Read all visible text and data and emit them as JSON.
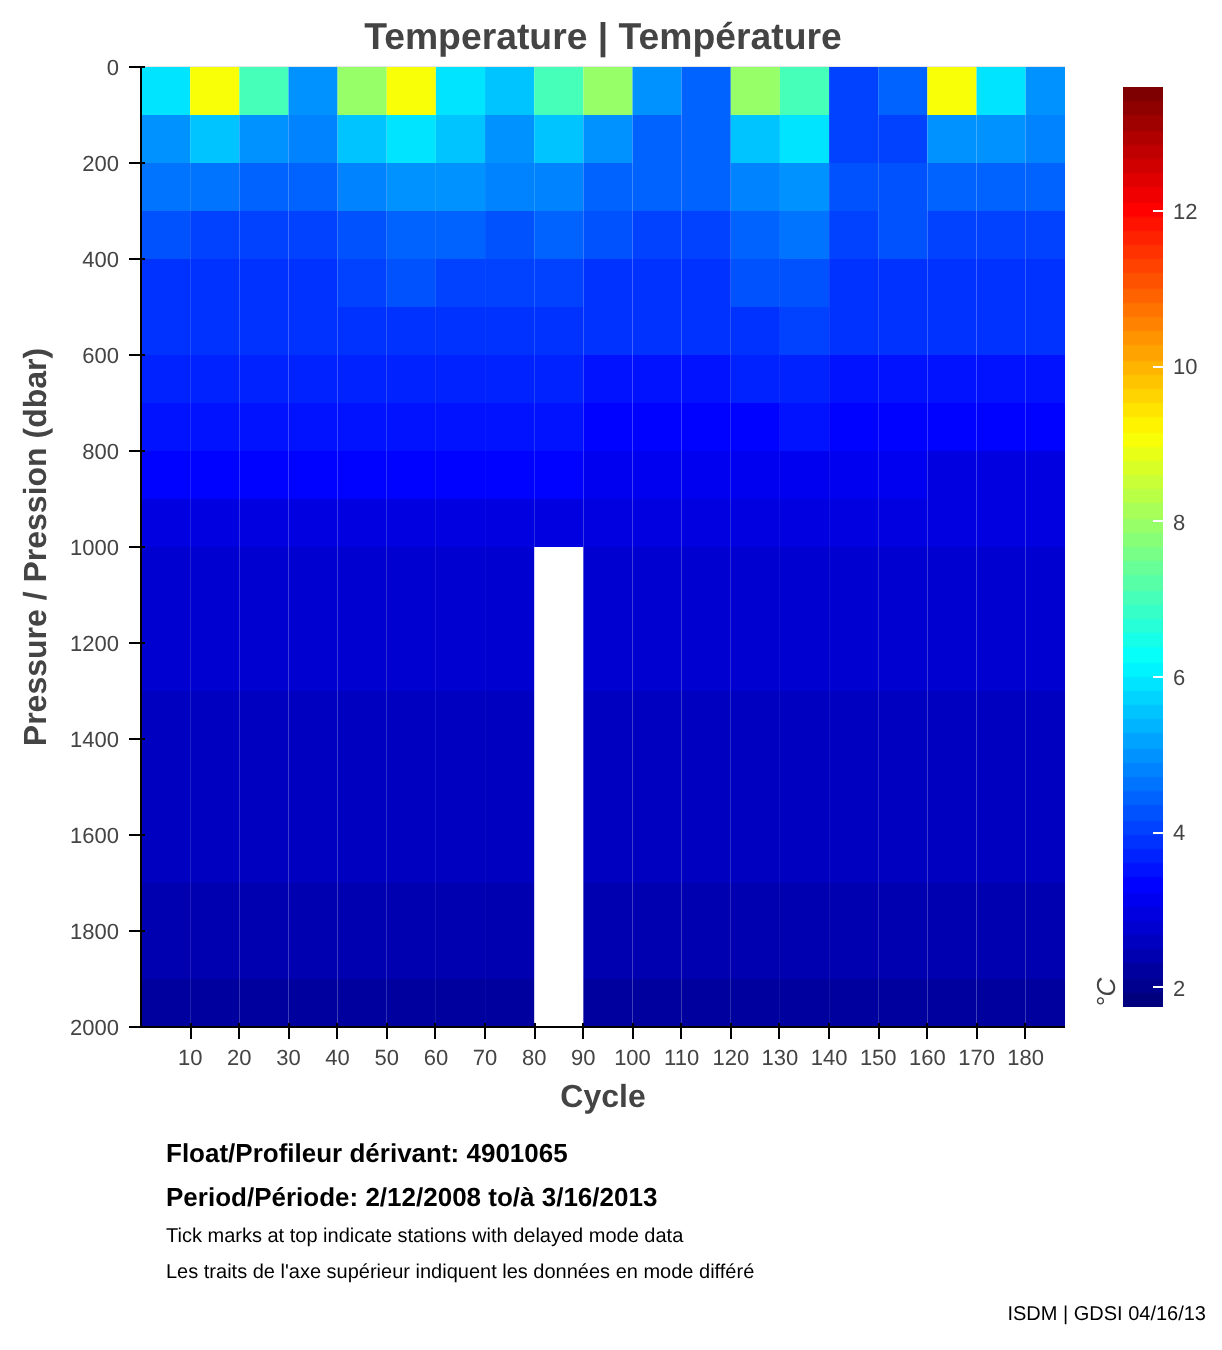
{
  "chart_data": {
    "type": "heatmap",
    "title": "Temperature | Température",
    "xlabel": "Cycle",
    "ylabel": "Pressure / Pression (dbar)",
    "clabel": "°C",
    "x": [
      5,
      15,
      25,
      35,
      45,
      55,
      65,
      75,
      85,
      95,
      105,
      115,
      125,
      135,
      145,
      155,
      165,
      175,
      185
    ],
    "xlim": [
      0,
      188
    ],
    "xticks": [
      10,
      20,
      30,
      40,
      50,
      60,
      70,
      80,
      90,
      100,
      110,
      120,
      130,
      140,
      150,
      160,
      170,
      180
    ],
    "ylim": [
      2000,
      0
    ],
    "yticks": [
      0,
      200,
      400,
      600,
      800,
      1000,
      1200,
      1400,
      1600,
      1800,
      2000
    ],
    "clim": [
      1.75,
      13.6
    ],
    "cticks": [
      2,
      4,
      6,
      8,
      10,
      12
    ],
    "cells": [
      [
        6,
        9,
        7,
        5,
        8,
        9,
        6,
        5.5,
        7,
        8,
        5,
        4.5,
        8,
        7,
        4,
        4.5,
        9,
        6,
        5
      ],
      [
        5,
        5.5,
        5,
        4.8,
        5.5,
        6,
        5.5,
        5,
        5.5,
        5,
        4.5,
        4.5,
        5.5,
        6,
        4,
        4,
        5,
        5,
        4.8
      ],
      [
        4.6,
        4.6,
        4.5,
        4.5,
        4.8,
        5,
        5,
        4.8,
        4.8,
        4.5,
        4.4,
        4.4,
        4.8,
        5,
        4.3,
        4.3,
        4.5,
        4.4,
        4.4
      ],
      [
        4.2,
        4.1,
        4.1,
        4.1,
        4.3,
        4.5,
        4.5,
        4.3,
        4.4,
        4.2,
        4.1,
        4.1,
        4.5,
        4.6,
        4.1,
        4.2,
        4.1,
        4.1,
        4.1
      ],
      [
        3.9,
        3.9,
        3.9,
        3.9,
        4,
        4.2,
        4.1,
        4.1,
        4,
        3.9,
        3.9,
        3.9,
        4.2,
        4.3,
        3.9,
        3.9,
        3.9,
        3.9,
        3.9
      ],
      [
        3.8,
        3.8,
        3.8,
        3.8,
        3.8,
        3.9,
        3.9,
        3.8,
        3.8,
        3.8,
        3.8,
        3.8,
        3.9,
        4,
        3.8,
        3.8,
        3.8,
        3.8,
        3.8
      ],
      [
        3.7,
        3.7,
        3.7,
        3.7,
        3.7,
        3.7,
        3.7,
        3.7,
        3.7,
        3.6,
        3.6,
        3.6,
        3.7,
        3.7,
        3.6,
        3.6,
        3.6,
        3.6,
        3.6
      ],
      [
        3.5,
        3.5,
        3.5,
        3.5,
        3.5,
        3.5,
        3.5,
        3.5,
        3.5,
        3.4,
        3.4,
        3.4,
        3.4,
        3.5,
        3.4,
        3.3,
        3.3,
        3.3,
        3.3
      ],
      [
        3.3,
        3.3,
        3.3,
        3.3,
        3.3,
        3.3,
        3.3,
        3.3,
        3.3,
        3.1,
        3.1,
        3.1,
        3.1,
        3.2,
        3.1,
        3.1,
        3,
        3,
        3
      ],
      [
        3,
        3,
        3,
        3,
        3,
        3,
        3,
        3,
        3,
        2.9,
        2.9,
        2.9,
        2.9,
        2.9,
        2.9,
        2.9,
        2.9,
        2.9,
        2.9
      ],
      [
        2.8,
        2.8,
        2.8,
        2.8,
        2.8,
        2.8,
        2.8,
        2.8,
        null,
        2.8,
        2.8,
        2.8,
        2.8,
        2.8,
        2.8,
        2.8,
        2.8,
        2.8,
        2.8
      ],
      [
        2.7,
        2.7,
        2.7,
        2.7,
        2.7,
        2.7,
        2.7,
        2.7,
        null,
        2.7,
        2.7,
        2.7,
        2.7,
        2.7,
        2.7,
        2.7,
        2.7,
        2.7,
        2.7
      ],
      [
        2.7,
        2.7,
        2.7,
        2.7,
        2.7,
        2.7,
        2.7,
        2.7,
        null,
        2.7,
        2.7,
        2.7,
        2.7,
        2.7,
        2.7,
        2.7,
        2.7,
        2.7,
        2.7
      ],
      [
        2.6,
        2.6,
        2.6,
        2.6,
        2.6,
        2.6,
        2.6,
        2.6,
        null,
        2.6,
        2.6,
        2.6,
        2.6,
        2.6,
        2.6,
        2.6,
        2.6,
        2.6,
        2.6
      ],
      [
        2.6,
        2.6,
        2.6,
        2.6,
        2.6,
        2.6,
        2.6,
        2.6,
        null,
        2.6,
        2.6,
        2.6,
        2.6,
        2.6,
        2.6,
        2.6,
        2.6,
        2.6,
        2.6
      ],
      [
        2.5,
        2.5,
        2.5,
        2.5,
        2.5,
        2.5,
        2.5,
        2.5,
        null,
        2.5,
        2.5,
        2.5,
        2.5,
        2.5,
        2.5,
        2.5,
        2.5,
        2.5,
        2.5
      ],
      [
        2.5,
        2.5,
        2.5,
        2.5,
        2.5,
        2.5,
        2.5,
        2.5,
        null,
        2.5,
        2.5,
        2.5,
        2.5,
        2.5,
        2.5,
        2.5,
        2.5,
        2.5,
        2.5
      ],
      [
        2.4,
        2.4,
        2.4,
        2.4,
        2.4,
        2.4,
        2.4,
        2.4,
        null,
        2.4,
        2.4,
        2.4,
        2.4,
        2.4,
        2.4,
        2.4,
        2.4,
        2.4,
        2.4
      ],
      [
        2.4,
        2.4,
        2.4,
        2.4,
        2.4,
        2.4,
        2.4,
        2.4,
        null,
        2.4,
        2.4,
        2.4,
        2.4,
        2.4,
        2.4,
        2.4,
        2.4,
        2.4,
        2.4
      ],
      [
        2.3,
        2.3,
        2.3,
        2.3,
        2.3,
        2.3,
        2.3,
        2.3,
        null,
        2.3,
        2.3,
        2.3,
        2.3,
        2.3,
        2.3,
        2.3,
        2.3,
        2.3,
        2.3
      ]
    ],
    "annotations": [
      "Float/Profileur dérivant: 4901065",
      "Period/Période: 2/12/2008 to/à 3/16/2013",
      "Tick marks at top indicate stations with delayed mode data",
      "Les traits de l'axe supérieur indiquent les données en mode différé",
      "ISDM | GDSI 04/16/13"
    ]
  }
}
